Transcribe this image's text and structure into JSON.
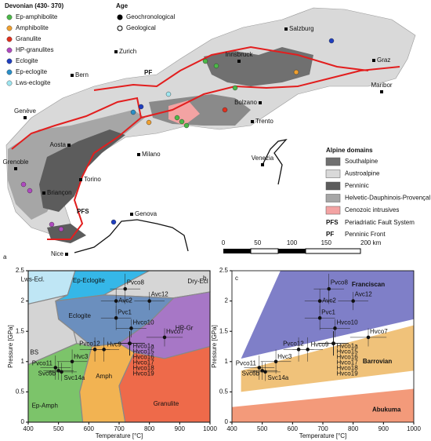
{
  "map": {
    "panel_label": "a",
    "legend": {
      "title": "Devonian (430- 370)",
      "items": [
        {
          "label": "Ep-amphibolite",
          "color": "#4cb848"
        },
        {
          "label": "Amphibolite",
          "color": "#f0a030"
        },
        {
          "label": "Granulite",
          "color": "#e0301e"
        },
        {
          "label": "HP-granulites",
          "color": "#b04ac0"
        },
        {
          "label": "Eclogite",
          "color": "#1f3fbf"
        },
        {
          "label": "Ep-eclogite",
          "color": "#2a8fc8"
        },
        {
          "label": "Lws-eclogite",
          "color": "#9fe6f0"
        }
      ]
    },
    "age": {
      "title": "Age",
      "items": [
        "Geochronological",
        "Geological"
      ]
    },
    "cities": [
      "Salzburg",
      "Zurich",
      "Bern",
      "Innsbruck",
      "Graz",
      "Maribor",
      "Bolzano",
      "Genève",
      "Trento",
      "Aosta",
      "Milano",
      "Venezia",
      "Grenoble",
      "Torino",
      "Briançon",
      "Genova",
      "Nice"
    ],
    "fault_labels": [
      "PF",
      "PFS"
    ],
    "domains": {
      "title": "Alpine domains",
      "items": [
        {
          "label": "Southalpine",
          "color": "#707070"
        },
        {
          "label": "Austroalpine",
          "color": "#d9d9d9"
        },
        {
          "label": "Penninic",
          "color": "#5c5c5c"
        },
        {
          "label": "Helvetic-Dauphinois-Provençal",
          "color": "#a6a6a6"
        },
        {
          "label": "Cenozoic intrusives",
          "color": "#f3a3a3"
        }
      ],
      "faults": [
        {
          "abbr": "PFS",
          "label": "Periadriatic Fault System"
        },
        {
          "abbr": "PF",
          "label": "Penninic Front"
        }
      ]
    },
    "scale": [
      0,
      50,
      100,
      150,
      {
        "value": 200,
        "label": "200 km"
      }
    ]
  },
  "chart_data": [
    {
      "type": "scatter",
      "panel_label": "b",
      "x_label": "Temperature [°C]",
      "y_label": "Pressure [GPa]",
      "xlim": [
        400,
        1000
      ],
      "ylim": [
        0,
        2.5
      ],
      "xticks": [
        400,
        500,
        600,
        700,
        800,
        900,
        1000
      ],
      "yticks": [
        0,
        0.5,
        1,
        1.5,
        2,
        2.5
      ],
      "regions": [
        "Lws-Ecl.",
        "Ep-Eclogite",
        "Dry-Ecl",
        "Eclogite",
        "HP-Gr",
        "BS",
        "Ep-Amph",
        "Amph",
        "Granulite"
      ],
      "color": "#111111",
      "point_labels": [
        "Pvco8",
        "Avc12",
        "Avc2",
        "Pvc1",
        "Hvco10",
        "Hvco7",
        "Pvco12",
        "Hvc9",
        "Hvco1a",
        "Hvco15",
        "Hvco16",
        "Hvco17",
        "Hvco18",
        "Hvco19",
        "Hvc3",
        "Pvco11",
        "Svc6b",
        "Svc14a"
      ],
      "x": [
        720,
        800,
        690,
        690,
        740,
        850,
        620,
        650,
        735,
        735,
        735,
        735,
        735,
        735,
        545,
        490,
        500,
        510
      ],
      "y": [
        2.2,
        2.0,
        2.0,
        1.72,
        1.55,
        1.4,
        1.2,
        1.2,
        1.3,
        1.3,
        1.3,
        1.3,
        1.3,
        1.3,
        1.0,
        0.9,
        0.85,
        0.83
      ],
      "xerr": [
        50,
        50,
        50,
        50,
        50,
        60,
        50,
        50,
        50,
        50,
        50,
        50,
        50,
        50,
        50,
        50,
        50,
        50
      ],
      "yerr": [
        0.25,
        0.15,
        0.2,
        0.2,
        0.15,
        0.15,
        0.2,
        0.2,
        0.2,
        0.2,
        0.2,
        0.2,
        0.2,
        0.2,
        0.2,
        0.2,
        0.15,
        0.15
      ]
    },
    {
      "type": "scatter",
      "panel_label": "c",
      "x_label": "Temperature [°C]",
      "y_label": "Pressure [GPa]",
      "xlim": [
        400,
        1000
      ],
      "ylim": [
        0,
        2.5
      ],
      "xticks": [
        400,
        500,
        600,
        700,
        800,
        900,
        1000
      ],
      "yticks": [
        0,
        0.5,
        1,
        1.5,
        2,
        2.5
      ],
      "regions": [
        "Franciscan",
        "Barrovian",
        "Abukuma"
      ],
      "color": "#111111",
      "point_labels": [
        "Pvco8",
        "Avc12",
        "Avc2",
        "Pvc1",
        "Hvco10",
        "Hvco7",
        "Pvco12",
        "Hvco9",
        "Hvco1a",
        "Hvco15",
        "Hvco16",
        "Hvco17",
        "Hvco18",
        "Hvco19",
        "Hvc3",
        "Pvco11",
        "Svc6b",
        "Svc14a"
      ],
      "x": [
        720,
        800,
        690,
        690,
        740,
        850,
        620,
        650,
        735,
        735,
        735,
        735,
        735,
        735,
        545,
        490,
        500,
        510
      ],
      "y": [
        2.2,
        2.0,
        2.0,
        1.72,
        1.55,
        1.4,
        1.2,
        1.2,
        1.3,
        1.3,
        1.3,
        1.3,
        1.3,
        1.3,
        1.0,
        0.9,
        0.85,
        0.83
      ],
      "xerr": [
        50,
        50,
        50,
        50,
        50,
        60,
        50,
        50,
        50,
        50,
        50,
        50,
        50,
        50,
        50,
        50,
        50,
        50
      ],
      "yerr": [
        0.25,
        0.15,
        0.2,
        0.2,
        0.15,
        0.15,
        0.2,
        0.2,
        0.2,
        0.2,
        0.2,
        0.2,
        0.2,
        0.2,
        0.2,
        0.2,
        0.15,
        0.15
      ]
    }
  ]
}
